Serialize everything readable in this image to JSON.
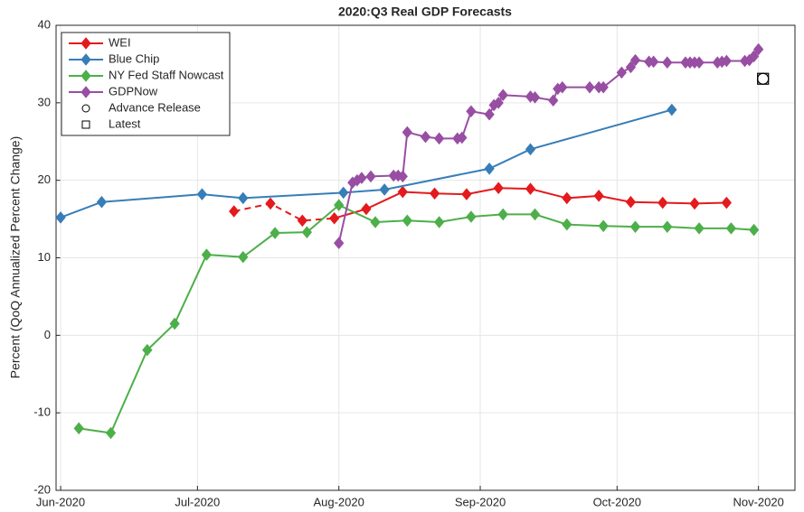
{
  "chart_data": {
    "type": "line",
    "title": "2020:Q3 Real GDP Forecasts",
    "y_label": "Percent (QoQ Annualized Percent Change)",
    "xlim": [
      -1,
      161
    ],
    "xticks": [
      {
        "value": 0,
        "label": "Jun-2020"
      },
      {
        "value": 30,
        "label": "Jul-2020"
      },
      {
        "value": 61,
        "label": "Aug-2020"
      },
      {
        "value": 92,
        "label": "Sep-2020"
      },
      {
        "value": 122,
        "label": "Oct-2020"
      },
      {
        "value": 153,
        "label": "Nov-2020"
      }
    ],
    "ylim": [
      -20,
      40
    ],
    "yticks": [
      -20,
      -10,
      0,
      10,
      20,
      30,
      40
    ],
    "grid": true,
    "legend": "top-left",
    "series": [
      {
        "name": "WEI",
        "color": "#e41a1c",
        "marker": "diamond",
        "dashed_segments": 3,
        "x": [
          38,
          46,
          53,
          60,
          67,
          75,
          82,
          89,
          96,
          103,
          111,
          118,
          125,
          132,
          139,
          146
        ],
        "values": [
          16.0,
          17.0,
          14.8,
          15.1,
          16.3,
          18.5,
          18.3,
          18.2,
          19.0,
          18.9,
          17.7,
          18.0,
          17.2,
          17.1,
          17.0,
          17.1
        ]
      },
      {
        "name": "Blue Chip",
        "color": "#377eb8",
        "marker": "diamond",
        "x": [
          0,
          9,
          31,
          40,
          62,
          71,
          94,
          103,
          134
        ],
        "values": [
          15.2,
          17.2,
          18.2,
          17.7,
          18.4,
          18.8,
          21.5,
          24.0,
          29.1
        ]
      },
      {
        "name": "NY Fed Staff Nowcast",
        "color": "#4daf4a",
        "marker": "diamond",
        "x": [
          4,
          11,
          19,
          25,
          32,
          40,
          47,
          54,
          61,
          69,
          76,
          83,
          90,
          97,
          104,
          111,
          119,
          126,
          133,
          140,
          147,
          152
        ],
        "values": [
          -12.0,
          -12.6,
          -1.9,
          1.5,
          10.4,
          10.1,
          13.2,
          13.3,
          16.8,
          14.6,
          14.8,
          14.6,
          15.3,
          15.6,
          15.6,
          14.3,
          14.1,
          14.0,
          14.0,
          13.8,
          13.8,
          13.6
        ]
      },
      {
        "name": "GDPNow",
        "color": "#984ea3",
        "marker": "diamond",
        "x": [
          61,
          64,
          65,
          66,
          68,
          73,
          74,
          75,
          76,
          80,
          83,
          87,
          88,
          90,
          94,
          95,
          96,
          97,
          103,
          104,
          108,
          109,
          110,
          116,
          118,
          119,
          123,
          125,
          126,
          129,
          130,
          133,
          137,
          138,
          139,
          140,
          144,
          145,
          146,
          150,
          151,
          152,
          153
        ],
        "values": [
          11.9,
          19.7,
          20.0,
          20.3,
          20.5,
          20.6,
          20.6,
          20.5,
          26.2,
          25.6,
          25.4,
          25.4,
          25.5,
          28.9,
          28.5,
          29.7,
          30.0,
          31.0,
          30.8,
          30.7,
          30.3,
          31.8,
          32.0,
          32.0,
          32.0,
          32.0,
          33.9,
          34.6,
          35.5,
          35.3,
          35.3,
          35.2,
          35.2,
          35.2,
          35.2,
          35.2,
          35.2,
          35.3,
          35.4,
          35.4,
          35.5,
          36.0,
          36.9
        ]
      },
      {
        "name": "Advance Release",
        "color": "#000000",
        "marker": "circle",
        "x": [
          154
        ],
        "values": [
          33.1
        ]
      },
      {
        "name": "Latest",
        "color": "#000000",
        "marker": "square",
        "x": [
          154
        ],
        "values": [
          33.1
        ]
      }
    ]
  }
}
